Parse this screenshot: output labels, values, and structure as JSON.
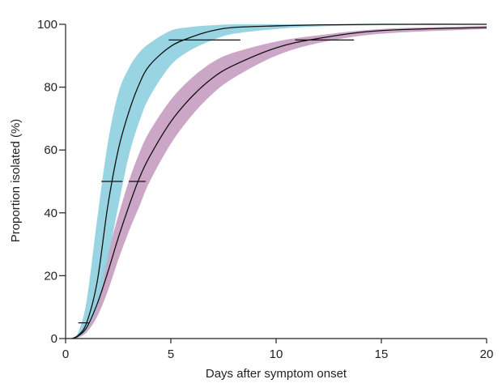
{
  "chart_data": {
    "type": "area",
    "title": "",
    "xlabel": "Days after symptom onset",
    "ylabel": "Proportion isolated (%)",
    "xlim": [
      0,
      20
    ],
    "ylim": [
      0,
      100
    ],
    "xticks": [
      0,
      5,
      10,
      15,
      20
    ],
    "yticks": [
      0,
      20,
      40,
      60,
      80,
      100
    ],
    "grid": false,
    "legend": "none",
    "series": [
      {
        "color": "#8fd0df",
        "x": [
          0.3,
          0.6,
          1.0,
          1.5,
          2.0,
          2.5,
          3.0,
          3.5,
          4.0,
          5.0,
          6.0,
          7.0,
          8.0,
          10.0,
          12.0,
          15.0,
          20.0
        ],
        "lower": [
          0,
          0.5,
          3,
          10,
          25,
          42,
          58,
          69,
          77,
          87,
          92,
          95,
          97,
          98.5,
          99.3,
          99.7,
          100
        ],
        "upper": [
          0,
          2,
          12,
          38,
          62,
          78,
          86,
          91,
          94,
          98,
          99.2,
          99.7,
          100,
          100,
          100,
          100,
          100
        ],
        "median": [
          0,
          1,
          5,
          18,
          42,
          60,
          72,
          81,
          87,
          93,
          96,
          98,
          99,
          99.5,
          99.8,
          100,
          100
        ],
        "markers": [
          {
            "y": 5,
            "x_from": 0.6,
            "x_to": 1.1
          },
          {
            "y": 50,
            "x_from": 1.7,
            "x_to": 2.7
          },
          {
            "y": 95,
            "x_from": 4.9,
            "x_to": 8.3
          }
        ]
      },
      {
        "color": "#c89ec1",
        "x": [
          0.3,
          0.6,
          1.0,
          1.5,
          2.0,
          2.5,
          3.0,
          3.5,
          4.0,
          5.0,
          6.0,
          7.0,
          8.0,
          10.0,
          12.0,
          15.0,
          20.0
        ],
        "lower": [
          0,
          0.3,
          2,
          7,
          15,
          25,
          34,
          42,
          50,
          62,
          71,
          78,
          83,
          90,
          94,
          97,
          98.5
        ],
        "upper": [
          0,
          1.5,
          6,
          15,
          27,
          39,
          50,
          59,
          66,
          76,
          83,
          88,
          91,
          94.5,
          96.5,
          98.5,
          99.5
        ],
        "median": [
          0,
          0.8,
          3.5,
          11,
          21,
          32,
          42,
          51,
          58,
          69,
          77,
          83,
          87,
          92.5,
          95.5,
          98,
          99
        ],
        "markers": [
          {
            "y": 50,
            "x_from": 3.0,
            "x_to": 3.8
          },
          {
            "y": 95,
            "x_from": 10.9,
            "x_to": 13.7
          }
        ]
      }
    ]
  }
}
